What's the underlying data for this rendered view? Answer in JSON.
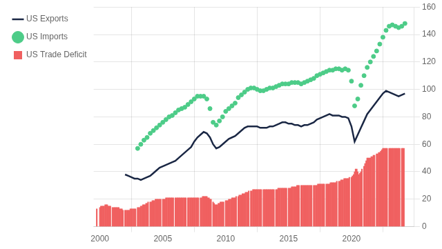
{
  "chart_data": {
    "type": "bar",
    "grid": true,
    "legend": "left",
    "xlim": [
      1999.5,
      2025.0
    ],
    "xticks": [
      2000,
      2005,
      2010,
      2015,
      2020
    ],
    "ylim": [
      0,
      160
    ],
    "yticks": [
      0,
      20,
      40,
      60,
      80,
      100,
      120,
      140,
      160
    ],
    "series": [
      {
        "name": "US Trade Deficit",
        "type": "bar",
        "color": "#f06060",
        "x": [
          1999.75,
          2000.0,
          2000.08,
          2000.17,
          2000.25,
          2000.33,
          2000.42,
          2000.5,
          2000.58,
          2000.67,
          2000.75,
          2000.83,
          2001.0,
          2001.08,
          2001.17,
          2001.25,
          2001.33,
          2001.42,
          2001.5,
          2001.58,
          2001.67,
          2001.75,
          2001.83,
          2002.0,
          2002.08,
          2002.17,
          2002.25,
          2002.33,
          2002.42,
          2002.5,
          2002.58,
          2002.67,
          2002.75,
          2002.83,
          2003.0,
          2003.08,
          2003.17,
          2003.25,
          2003.33,
          2003.42,
          2003.5,
          2003.58,
          2003.67,
          2003.75,
          2003.83,
          2004.0,
          2004.08,
          2004.17,
          2004.25,
          2004.33,
          2004.42,
          2004.5,
          2004.58,
          2004.67,
          2004.75,
          2004.83,
          2005.0,
          2005.08,
          2005.17,
          2005.25,
          2005.33,
          2005.42,
          2005.5,
          2005.58,
          2005.67,
          2005.75,
          2005.83,
          2006.0,
          2006.08,
          2006.17,
          2006.25,
          2006.33,
          2006.42,
          2006.5,
          2006.58,
          2006.67,
          2006.75,
          2006.83,
          2007.0,
          2007.08,
          2007.17,
          2007.25,
          2007.33,
          2007.42,
          2007.5,
          2007.58,
          2007.67,
          2007.75,
          2007.83,
          2008.0,
          2008.08,
          2008.17,
          2008.25,
          2008.33,
          2008.42,
          2008.5,
          2008.58,
          2008.67,
          2008.75,
          2008.83,
          2009.0,
          2009.08,
          2009.17,
          2009.25,
          2009.33,
          2009.42,
          2009.5,
          2009.58,
          2009.67,
          2009.75,
          2009.83,
          2010.0,
          2010.08,
          2010.17,
          2010.25,
          2010.33,
          2010.42,
          2010.5,
          2010.58,
          2010.67,
          2010.75,
          2010.83,
          2011.0,
          2011.08,
          2011.17,
          2011.25,
          2011.33,
          2011.42,
          2011.5,
          2011.58,
          2011.67,
          2011.75,
          2011.83,
          2012.0,
          2012.08,
          2012.17,
          2012.25,
          2012.33,
          2012.42,
          2012.5,
          2012.58,
          2012.67,
          2012.75,
          2012.83,
          2013.0,
          2013.08,
          2013.17,
          2013.25,
          2013.33,
          2013.42,
          2013.5,
          2013.58,
          2013.67,
          2013.75,
          2013.83,
          2014.0,
          2014.08,
          2014.17,
          2014.25,
          2014.33,
          2014.42,
          2014.5,
          2014.58,
          2014.67,
          2014.75,
          2014.83,
          2015.0,
          2015.08,
          2015.17,
          2015.25,
          2015.33,
          2015.42,
          2015.5,
          2015.58,
          2015.67,
          2015.75,
          2015.83,
          2016.0,
          2016.08,
          2016.17,
          2016.25,
          2016.33,
          2016.42,
          2016.5,
          2016.58,
          2016.67,
          2016.75,
          2016.83,
          2017.0,
          2017.08,
          2017.17,
          2017.25,
          2017.33,
          2017.42,
          2017.5,
          2017.58,
          2017.67,
          2017.75,
          2017.83,
          2018.0,
          2018.08,
          2018.17,
          2018.25,
          2018.33,
          2018.42,
          2018.5,
          2018.58,
          2018.67,
          2018.75,
          2018.83,
          2019.0,
          2019.08,
          2019.17,
          2019.25,
          2019.33,
          2019.42,
          2019.5,
          2019.58,
          2019.67,
          2019.75,
          2019.83,
          2020.0,
          2020.08,
          2020.17,
          2020.25,
          2020.33,
          2020.42,
          2020.5,
          2020.58,
          2020.67,
          2020.75,
          2020.83,
          2021.0,
          2021.08,
          2021.17,
          2021.25,
          2021.33,
          2021.42,
          2021.5,
          2021.58,
          2021.67,
          2021.75,
          2021.83,
          2022.0,
          2022.08,
          2022.17,
          2022.25,
          2022.33,
          2022.42,
          2022.5,
          2022.58,
          2022.67,
          2022.75,
          2022.83,
          2023.0,
          2023.08,
          2023.17,
          2023.25,
          2023.33,
          2023.42,
          2023.5,
          2023.58,
          2023.67,
          2023.75,
          2023.83,
          2024.0,
          2024.08,
          2024.17
        ],
        "values": [
          13,
          14,
          15,
          15,
          15,
          15,
          16,
          16,
          16,
          15,
          15,
          15,
          14,
          14,
          14,
          14,
          14,
          14,
          14,
          13,
          13,
          13,
          12,
          12,
          12,
          12,
          12,
          12,
          13,
          13,
          13,
          13,
          13,
          13,
          14,
          14,
          14,
          15,
          15,
          16,
          16,
          16,
          17,
          17,
          18,
          18,
          18,
          19,
          19,
          19,
          20,
          20,
          20,
          20,
          20,
          20,
          20,
          20,
          20,
          21,
          21,
          21,
          21,
          21,
          21,
          21,
          21,
          21,
          21,
          21,
          21,
          21,
          21,
          21,
          21,
          21,
          21,
          21,
          21,
          21,
          21,
          21,
          21,
          21,
          21,
          21,
          21,
          21,
          21,
          21,
          21,
          22,
          22,
          22,
          22,
          22,
          21,
          21,
          20,
          20,
          18,
          17,
          16,
          16,
          16,
          17,
          17,
          18,
          18,
          18,
          18,
          19,
          19,
          19,
          20,
          20,
          20,
          21,
          21,
          21,
          21,
          22,
          22,
          23,
          23,
          23,
          24,
          24,
          24,
          25,
          25,
          25,
          26,
          26,
          26,
          27,
          27,
          27,
          27,
          27,
          27,
          27,
          27,
          27,
          27,
          27,
          27,
          27,
          27,
          27,
          27,
          27,
          27,
          27,
          27,
          27,
          27,
          28,
          28,
          28,
          28,
          28,
          28,
          28,
          28,
          28,
          28,
          28,
          28,
          29,
          29,
          29,
          29,
          29,
          30,
          30,
          30,
          30,
          30,
          30,
          30,
          30,
          30,
          30,
          30,
          30,
          30,
          30,
          30,
          30,
          30,
          30,
          31,
          31,
          31,
          31,
          31,
          31,
          31,
          31,
          31,
          31,
          31,
          32,
          32,
          32,
          32,
          32,
          32,
          33,
          33,
          33,
          34,
          34,
          34,
          35,
          35,
          35,
          35,
          35,
          36,
          36,
          37,
          38,
          40,
          42,
          42,
          40,
          38,
          39,
          40,
          42,
          44,
          46,
          48,
          50,
          50,
          50,
          50,
          51,
          51,
          52,
          52,
          53,
          53,
          54,
          54,
          55,
          56,
          57,
          57,
          57,
          57,
          57,
          57,
          57,
          57,
          57,
          57,
          57,
          57,
          57,
          57,
          57,
          57,
          57,
          57,
          57
        ]
      },
      {
        "name": "US Exports",
        "type": "line",
        "color": "#1a2744",
        "line_style": "solid",
        "x": [
          2002.0,
          2002.25,
          2002.5,
          2002.75,
          2003.0,
          2003.25,
          2003.5,
          2003.75,
          2004.0,
          2004.25,
          2004.5,
          2004.75,
          2005.0,
          2005.25,
          2005.5,
          2005.75,
          2006.0,
          2006.25,
          2006.5,
          2006.75,
          2007.0,
          2007.25,
          2007.5,
          2007.75,
          2008.0,
          2008.25,
          2008.5,
          2008.75,
          2009.0,
          2009.25,
          2009.5,
          2009.75,
          2010.0,
          2010.25,
          2010.5,
          2010.75,
          2011.0,
          2011.25,
          2011.5,
          2011.75,
          2012.0,
          2012.25,
          2012.5,
          2012.75,
          2013.0,
          2013.25,
          2013.5,
          2013.75,
          2014.0,
          2014.25,
          2014.5,
          2014.75,
          2015.0,
          2015.25,
          2015.5,
          2015.75,
          2016.0,
          2016.25,
          2016.5,
          2016.75,
          2017.0,
          2017.25,
          2017.5,
          2017.75,
          2018.0,
          2018.25,
          2018.5,
          2018.75,
          2019.0,
          2019.25,
          2019.5,
          2019.75,
          2020.0,
          2020.25,
          2020.5,
          2020.75,
          2021.0,
          2021.25,
          2021.5,
          2021.75,
          2022.0,
          2022.25,
          2022.5,
          2022.75,
          2023.0,
          2023.25,
          2023.5,
          2023.75,
          2024.0,
          2024.25
        ],
        "values": [
          38,
          37,
          36,
          35,
          35,
          34,
          35,
          36,
          37,
          39,
          41,
          43,
          44,
          45,
          46,
          47,
          48,
          50,
          52,
          54,
          56,
          58,
          62,
          65,
          67,
          69,
          68,
          65,
          60,
          57,
          58,
          60,
          62,
          64,
          65,
          66,
          68,
          70,
          72,
          73,
          73,
          73,
          73,
          72,
          72,
          72,
          73,
          73,
          74,
          75,
          76,
          76,
          75,
          75,
          74,
          74,
          73,
          74,
          74,
          75,
          76,
          78,
          79,
          80,
          81,
          82,
          81,
          81,
          81,
          80,
          80,
          79,
          73,
          62,
          67,
          72,
          77,
          82,
          85,
          88,
          91,
          94,
          97,
          99,
          98,
          97,
          96,
          95,
          96,
          97
        ]
      },
      {
        "name": "US Imports",
        "type": "scatter",
        "color": "#4dcc88",
        "marker": "o",
        "x": [
          2003.0,
          2003.25,
          2003.5,
          2003.75,
          2004.0,
          2004.25,
          2004.5,
          2004.75,
          2005.0,
          2005.25,
          2005.5,
          2005.75,
          2006.0,
          2006.25,
          2006.5,
          2006.75,
          2007.0,
          2007.25,
          2007.5,
          2007.75,
          2008.0,
          2008.25,
          2008.5,
          2008.75,
          2009.0,
          2009.25,
          2009.5,
          2009.75,
          2010.0,
          2010.25,
          2010.5,
          2010.75,
          2011.0,
          2011.25,
          2011.5,
          2011.75,
          2012.0,
          2012.25,
          2012.5,
          2012.75,
          2013.0,
          2013.25,
          2013.5,
          2013.75,
          2014.0,
          2014.25,
          2014.5,
          2014.75,
          2015.0,
          2015.25,
          2015.5,
          2015.75,
          2016.0,
          2016.25,
          2016.5,
          2016.75,
          2017.0,
          2017.25,
          2017.5,
          2017.75,
          2018.0,
          2018.25,
          2018.5,
          2018.75,
          2019.0,
          2019.25,
          2019.5,
          2019.75,
          2020.0,
          2020.25,
          2020.5,
          2020.75,
          2021.0,
          2021.25,
          2021.5,
          2021.75,
          2022.0,
          2022.25,
          2022.5,
          2022.75,
          2023.0,
          2023.25,
          2023.5,
          2023.75,
          2024.0,
          2024.25
        ],
        "values": [
          57,
          60,
          63,
          65,
          68,
          70,
          72,
          74,
          76,
          78,
          80,
          81,
          83,
          85,
          86,
          87,
          89,
          91,
          93,
          95,
          95,
          95,
          93,
          86,
          76,
          74,
          77,
          80,
          84,
          86,
          88,
          90,
          94,
          96,
          98,
          100,
          101,
          101,
          100,
          99,
          99,
          100,
          101,
          101,
          102,
          103,
          104,
          104,
          104,
          105,
          105,
          105,
          104,
          105,
          106,
          107,
          108,
          110,
          111,
          112,
          113,
          114,
          114,
          115,
          115,
          114,
          115,
          114,
          106,
          88,
          93,
          103,
          110,
          116,
          120,
          124,
          128,
          133,
          138,
          143,
          146,
          147,
          146,
          145,
          146,
          148
        ]
      }
    ]
  }
}
